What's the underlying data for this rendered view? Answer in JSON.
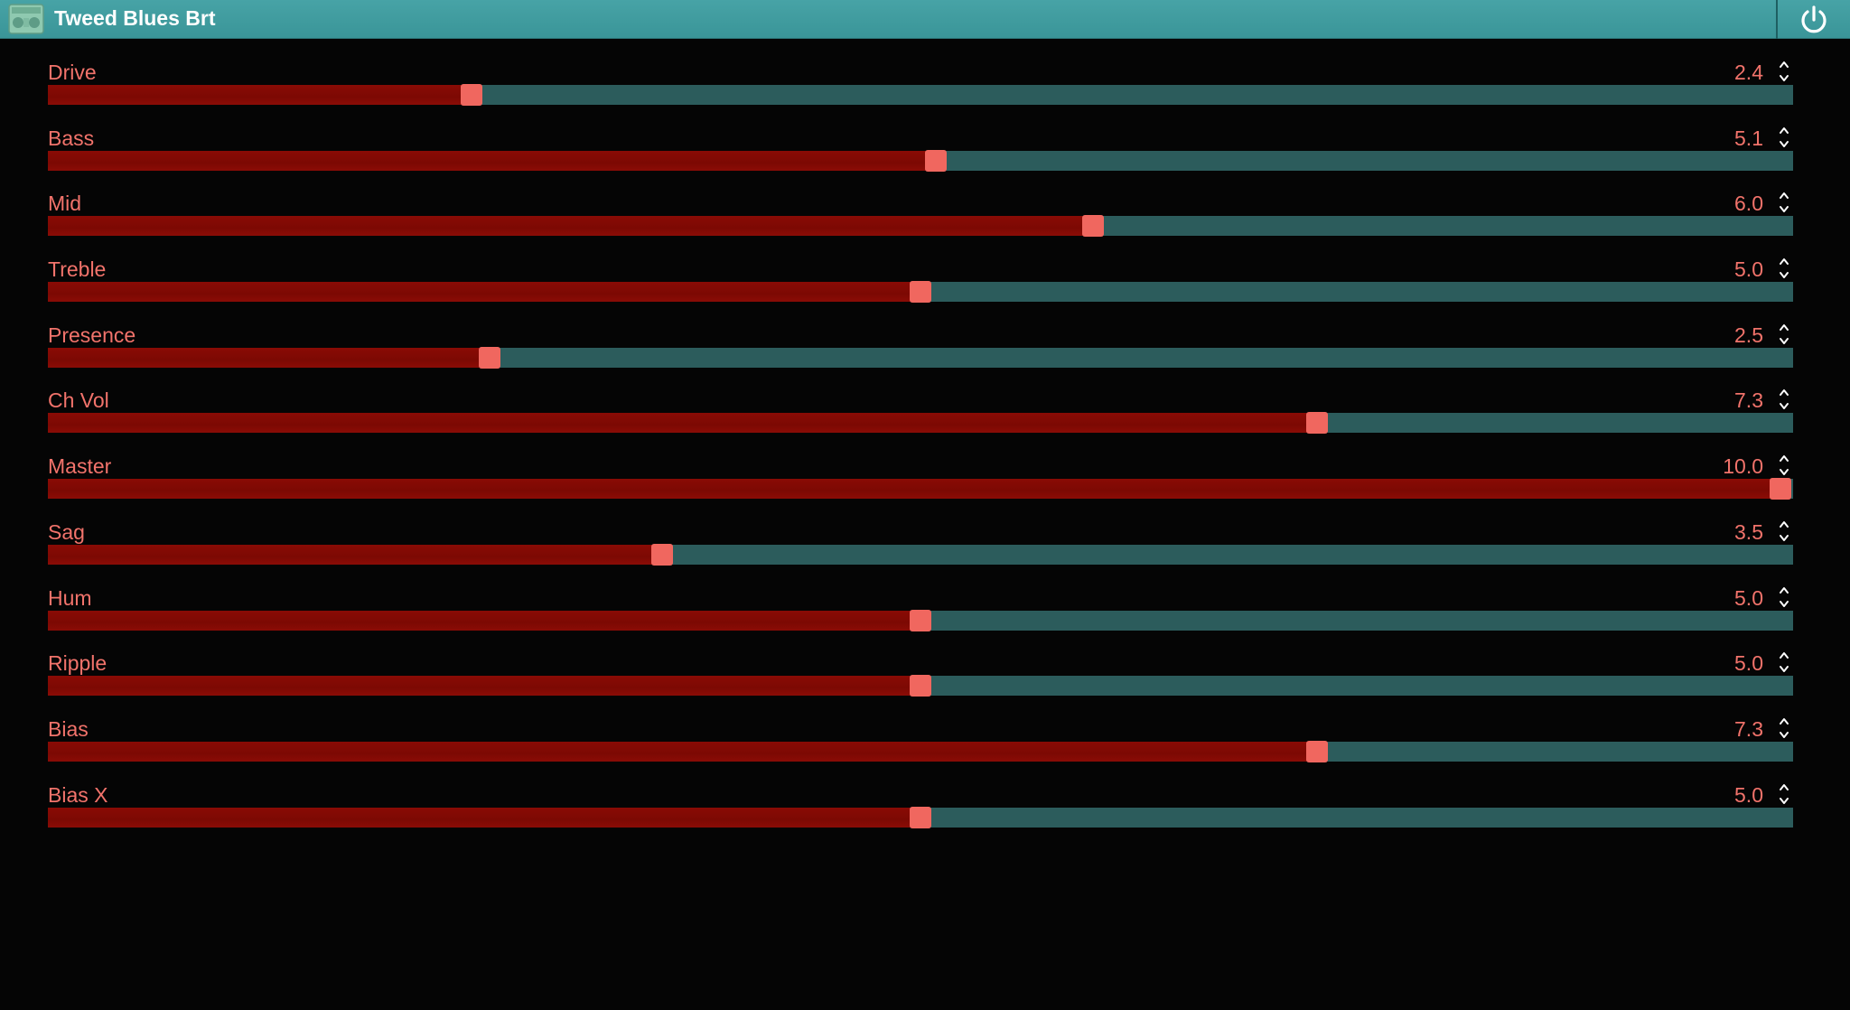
{
  "header": {
    "title": "Tweed Blues Brt",
    "app_icon": "amp-icon",
    "power_icon": "power-icon"
  },
  "colors": {
    "titlebar": "#3f9b9e",
    "accent": "#f2736b",
    "fill": "#860a04",
    "track": "#2c5c5c",
    "thumb": "#f0675f",
    "background": "#050505"
  },
  "controls": [
    {
      "label": "Drive",
      "value": "2.4",
      "min": 0,
      "max": 10,
      "fraction": 0.243
    },
    {
      "label": "Bass",
      "value": "5.1",
      "min": 0,
      "max": 10,
      "fraction": 0.509
    },
    {
      "label": "Mid",
      "value": "6.0",
      "min": 0,
      "max": 10,
      "fraction": 0.599
    },
    {
      "label": "Treble",
      "value": "5.0",
      "min": 0,
      "max": 10,
      "fraction": 0.5
    },
    {
      "label": "Presence",
      "value": "2.5",
      "min": 0,
      "max": 10,
      "fraction": 0.253
    },
    {
      "label": "Ch Vol",
      "value": "7.3",
      "min": 0,
      "max": 10,
      "fraction": 0.727
    },
    {
      "label": "Master",
      "value": "10.0",
      "min": 0,
      "max": 10,
      "fraction": 0.993
    },
    {
      "label": "Sag",
      "value": "3.5",
      "min": 0,
      "max": 10,
      "fraction": 0.352
    },
    {
      "label": "Hum",
      "value": "5.0",
      "min": 0,
      "max": 10,
      "fraction": 0.5
    },
    {
      "label": "Ripple",
      "value": "5.0",
      "min": 0,
      "max": 10,
      "fraction": 0.5
    },
    {
      "label": "Bias",
      "value": "7.3",
      "min": 0,
      "max": 10,
      "fraction": 0.727
    },
    {
      "label": "Bias X",
      "value": "5.0",
      "min": 0,
      "max": 10,
      "fraction": 0.5
    }
  ]
}
